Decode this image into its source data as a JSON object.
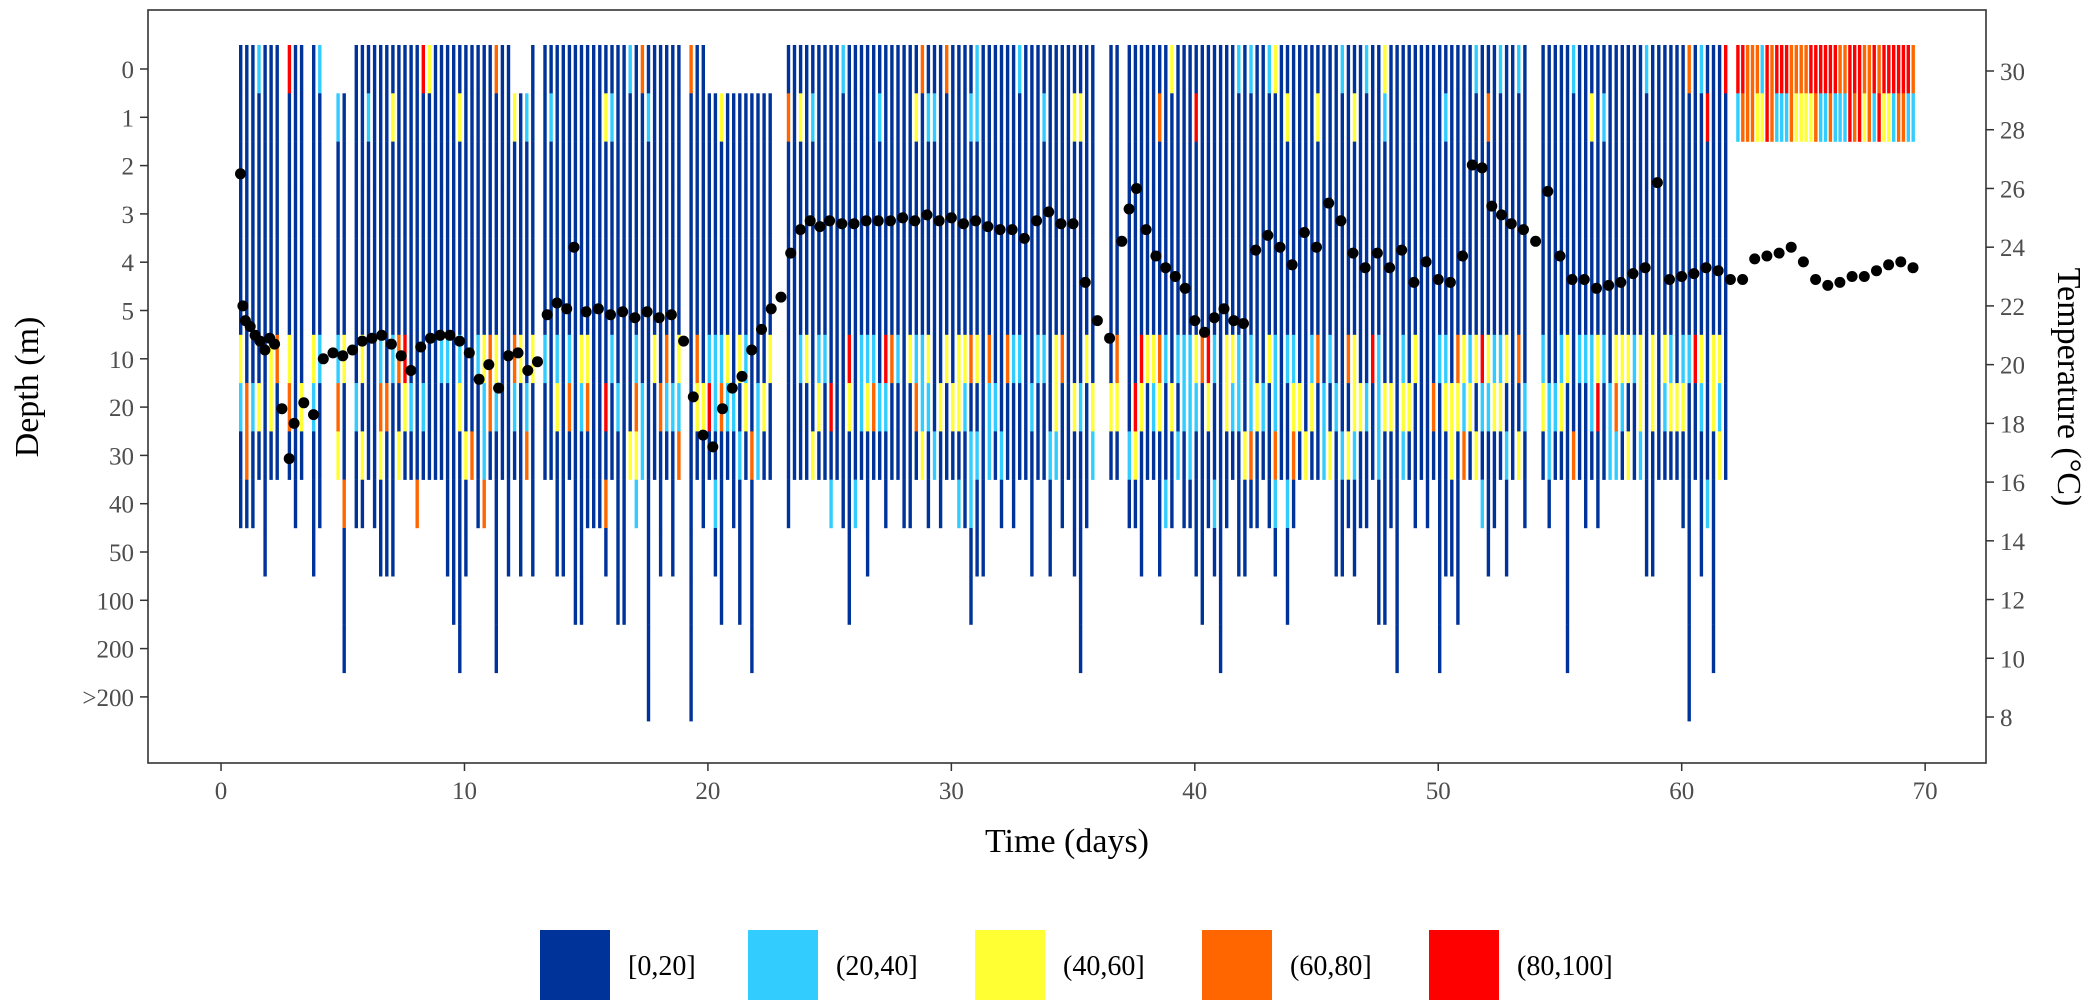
{
  "chart_data": {
    "type": "heatmap",
    "title": "",
    "xlabel": "Time (days)",
    "ylabel": "Depth (m)",
    "y2label": "Temperature (°C)",
    "xlim": [
      -3,
      72.5
    ],
    "x_ticks": [
      0,
      10,
      20,
      30,
      40,
      50,
      60,
      70
    ],
    "depth_bins": [
      "0",
      "1",
      "2",
      "3",
      "4",
      "5",
      "10",
      "20",
      "30",
      "40",
      "50",
      "100",
      "200",
      ">200"
    ],
    "temp_lim": [
      6.4,
      31.5
    ],
    "temp_ticks": [
      8,
      10,
      12,
      14,
      16,
      18,
      20,
      22,
      24,
      26,
      28,
      30
    ],
    "legend": {
      "position": "bottom",
      "entries": [
        {
          "label": "[0,20]",
          "color": "#003399"
        },
        {
          "label": "(20,40]",
          "color": "#33CCFF"
        },
        {
          "label": "(40,60]",
          "color": "#FFFF33"
        },
        {
          "label": "(60,80]",
          "color": "#FF6600"
        },
        {
          "label": "(80,100]",
          "color": "#FF0000"
        }
      ]
    },
    "temperature_series": [
      [
        0.8,
        26.5
      ],
      [
        0.9,
        22
      ],
      [
        1.0,
        21.5
      ],
      [
        1.2,
        21.3
      ],
      [
        1.4,
        21.0
      ],
      [
        1.6,
        20.8
      ],
      [
        1.8,
        20.5
      ],
      [
        2.0,
        20.9
      ],
      [
        2.2,
        20.7
      ],
      [
        2.5,
        18.5
      ],
      [
        2.8,
        16.8
      ],
      [
        3.0,
        18.0
      ],
      [
        3.4,
        18.7
      ],
      [
        3.8,
        18.3
      ],
      [
        4.2,
        20.2
      ],
      [
        4.6,
        20.4
      ],
      [
        5.0,
        20.3
      ],
      [
        5.4,
        20.5
      ],
      [
        5.8,
        20.8
      ],
      [
        6.2,
        20.9
      ],
      [
        6.6,
        21.0
      ],
      [
        7.0,
        20.7
      ],
      [
        7.4,
        20.3
      ],
      [
        7.8,
        19.8
      ],
      [
        8.2,
        20.6
      ],
      [
        8.6,
        20.9
      ],
      [
        9.0,
        21.0
      ],
      [
        9.4,
        21.0
      ],
      [
        9.8,
        20.8
      ],
      [
        10.2,
        20.4
      ],
      [
        10.6,
        19.5
      ],
      [
        11.0,
        20.0
      ],
      [
        11.4,
        19.2
      ],
      [
        11.8,
        20.3
      ],
      [
        12.2,
        20.4
      ],
      [
        12.6,
        19.8
      ],
      [
        13.0,
        20.1
      ],
      [
        13.4,
        21.7
      ],
      [
        13.8,
        22.1
      ],
      [
        14.2,
        21.9
      ],
      [
        14.5,
        24.0
      ],
      [
        15.0,
        21.8
      ],
      [
        15.5,
        21.9
      ],
      [
        16.0,
        21.7
      ],
      [
        16.5,
        21.8
      ],
      [
        17.0,
        21.6
      ],
      [
        17.5,
        21.8
      ],
      [
        18.0,
        21.6
      ],
      [
        18.5,
        21.7
      ],
      [
        19.0,
        20.8
      ],
      [
        19.4,
        18.9
      ],
      [
        19.8,
        17.6
      ],
      [
        20.2,
        17.2
      ],
      [
        20.6,
        18.5
      ],
      [
        21.0,
        19.2
      ],
      [
        21.4,
        19.6
      ],
      [
        21.8,
        20.5
      ],
      [
        22.2,
        21.2
      ],
      [
        22.6,
        21.9
      ],
      [
        23.0,
        22.3
      ],
      [
        23.4,
        23.8
      ],
      [
        23.8,
        24.6
      ],
      [
        24.2,
        24.9
      ],
      [
        24.6,
        24.7
      ],
      [
        25.0,
        24.9
      ],
      [
        25.5,
        24.8
      ],
      [
        26.0,
        24.8
      ],
      [
        26.5,
        24.9
      ],
      [
        27.0,
        24.9
      ],
      [
        27.5,
        24.9
      ],
      [
        28.0,
        25.0
      ],
      [
        28.5,
        24.9
      ],
      [
        29.0,
        25.1
      ],
      [
        29.5,
        24.9
      ],
      [
        30.0,
        25.0
      ],
      [
        30.5,
        24.8
      ],
      [
        31.0,
        24.9
      ],
      [
        31.5,
        24.7
      ],
      [
        32.0,
        24.6
      ],
      [
        32.5,
        24.6
      ],
      [
        33.0,
        24.3
      ],
      [
        33.5,
        24.9
      ],
      [
        34.0,
        25.2
      ],
      [
        34.5,
        24.8
      ],
      [
        35.0,
        24.8
      ],
      [
        35.5,
        22.8
      ],
      [
        36.0,
        21.5
      ],
      [
        36.5,
        20.9
      ],
      [
        37.0,
        24.2
      ],
      [
        37.3,
        25.3
      ],
      [
        37.6,
        26.0
      ],
      [
        38.0,
        24.6
      ],
      [
        38.4,
        23.7
      ],
      [
        38.8,
        23.3
      ],
      [
        39.2,
        23.0
      ],
      [
        39.6,
        22.6
      ],
      [
        40.0,
        21.5
      ],
      [
        40.4,
        21.1
      ],
      [
        40.8,
        21.6
      ],
      [
        41.2,
        21.9
      ],
      [
        41.6,
        21.5
      ],
      [
        42.0,
        21.4
      ],
      [
        42.5,
        23.9
      ],
      [
        43.0,
        24.4
      ],
      [
        43.5,
        24.0
      ],
      [
        44.0,
        23.4
      ],
      [
        44.5,
        24.5
      ],
      [
        45.0,
        24.0
      ],
      [
        45.5,
        25.5
      ],
      [
        46.0,
        24.9
      ],
      [
        46.5,
        23.8
      ],
      [
        47.0,
        23.3
      ],
      [
        47.5,
        23.8
      ],
      [
        48.0,
        23.3
      ],
      [
        48.5,
        23.9
      ],
      [
        49.0,
        22.8
      ],
      [
        49.5,
        23.5
      ],
      [
        50.0,
        22.9
      ],
      [
        50.5,
        22.8
      ],
      [
        51.0,
        23.7
      ],
      [
        51.4,
        26.8
      ],
      [
        51.8,
        26.7
      ],
      [
        52.2,
        25.4
      ],
      [
        52.6,
        25.1
      ],
      [
        53.0,
        24.8
      ],
      [
        53.5,
        24.6
      ],
      [
        54.0,
        24.2
      ],
      [
        54.5,
        25.9
      ],
      [
        55.0,
        23.7
      ],
      [
        55.5,
        22.9
      ],
      [
        56.0,
        22.9
      ],
      [
        56.5,
        22.6
      ],
      [
        57.0,
        22.7
      ],
      [
        57.5,
        22.8
      ],
      [
        58.0,
        23.1
      ],
      [
        58.5,
        23.3
      ],
      [
        59.0,
        26.2
      ],
      [
        59.5,
        22.9
      ],
      [
        60.0,
        23.0
      ],
      [
        60.5,
        23.1
      ],
      [
        61.0,
        23.3
      ],
      [
        61.5,
        23.2
      ],
      [
        62.0,
        22.9
      ],
      [
        62.5,
        22.9
      ],
      [
        63.0,
        23.6
      ],
      [
        63.5,
        23.7
      ],
      [
        64.0,
        23.8
      ],
      [
        64.5,
        24.0
      ],
      [
        65.0,
        23.5
      ],
      [
        65.5,
        22.9
      ],
      [
        66.0,
        22.7
      ],
      [
        66.5,
        22.8
      ],
      [
        67.0,
        23.0
      ],
      [
        67.5,
        23.0
      ],
      [
        68.0,
        23.2
      ],
      [
        68.5,
        23.4
      ],
      [
        69.0,
        23.5
      ],
      [
        69.5,
        23.3
      ]
    ]
  }
}
